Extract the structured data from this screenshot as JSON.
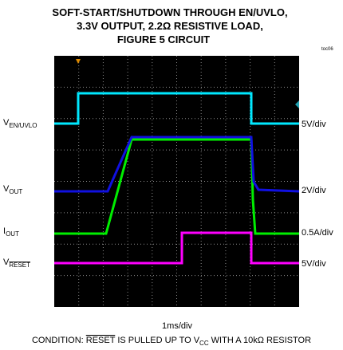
{
  "title": [
    "SOFT-START/SHUTDOWN THROUGH EN/UVLO,",
    "3.3V OUTPUT, 2.2Ω RESISTIVE LOAD,",
    "FIGURE 5 CIRCUIT"
  ],
  "figure_id": "toc06",
  "channels": [
    {
      "label": "V",
      "sub": "EN/UVLO",
      "scale": "5V/div"
    },
    {
      "label": "V",
      "sub": "OUT",
      "scale": "2V/div"
    },
    {
      "label": "I",
      "sub": "OUT",
      "scale": "0.5A/div"
    },
    {
      "label": "V",
      "sub": "RESET",
      "scale": "5V/div"
    }
  ],
  "time_scale": "1ms/div",
  "condition": {
    "prefix": "CONDITION: ",
    "signal": "RESET",
    "middle": " IS PULLED UP TO V",
    "sub": "CC",
    "suffix": " WITH A 10kΩ RESISTOR"
  }
}
